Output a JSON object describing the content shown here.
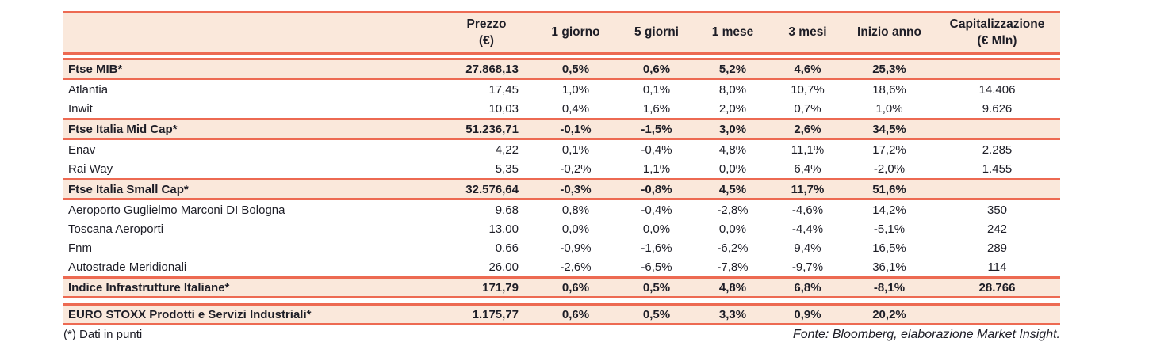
{
  "colors": {
    "accent_line": "#ED6A52",
    "highlight_row_bg": "#FAE8DB",
    "text": "#1D1D26"
  },
  "table": {
    "header": {
      "name": "",
      "cols": [
        "Prezzo\n(€)",
        "1 giorno",
        "5 giorni",
        "1 mese",
        "3 mesi",
        "Inizio anno",
        "Capitalizzazione\n(€ Mln)"
      ]
    },
    "rows": [
      {
        "type": "index",
        "gap_before": true,
        "name": "Ftse MIB*",
        "prezzo": "27.868,13",
        "d1": "0,5%",
        "d5": "0,6%",
        "m1": "5,2%",
        "m3": "4,6%",
        "ytd": "25,3%",
        "cap": ""
      },
      {
        "type": "stock",
        "name": "Atlantia",
        "prezzo": "17,45",
        "d1": "1,0%",
        "d5": "0,1%",
        "m1": "8,0%",
        "m3": "10,7%",
        "ytd": "18,6%",
        "cap": "14.406"
      },
      {
        "type": "stock",
        "name": "Inwit",
        "prezzo": "10,03",
        "d1": "0,4%",
        "d5": "1,6%",
        "m1": "2,0%",
        "m3": "0,7%",
        "ytd": "1,0%",
        "cap": "9.626"
      },
      {
        "type": "index",
        "name": "Ftse Italia Mid Cap*",
        "prezzo": "51.236,71",
        "d1": "-0,1%",
        "d5": "-1,5%",
        "m1": "3,0%",
        "m3": "2,6%",
        "ytd": "34,5%",
        "cap": ""
      },
      {
        "type": "stock",
        "name": "Enav",
        "prezzo": "4,22",
        "d1": "0,1%",
        "d5": "-0,4%",
        "m1": "4,8%",
        "m3": "11,1%",
        "ytd": "17,2%",
        "cap": "2.285"
      },
      {
        "type": "stock",
        "name": "Rai Way",
        "prezzo": "5,35",
        "d1": "-0,2%",
        "d5": "1,1%",
        "m1": "0,0%",
        "m3": "6,4%",
        "ytd": "-2,0%",
        "cap": "1.455"
      },
      {
        "type": "index",
        "name": "Ftse Italia Small Cap*",
        "prezzo": "32.576,64",
        "d1": "-0,3%",
        "d5": "-0,8%",
        "m1": "4,5%",
        "m3": "11,7%",
        "ytd": "51,6%",
        "cap": ""
      },
      {
        "type": "stock",
        "name": "Aeroporto Guglielmo Marconi DI Bologna",
        "prezzo": "9,68",
        "d1": "0,8%",
        "d5": "-0,4%",
        "m1": "-2,8%",
        "m3": "-4,6%",
        "ytd": "14,2%",
        "cap": "350"
      },
      {
        "type": "stock",
        "name": "Toscana Aeroporti",
        "prezzo": "13,00",
        "d1": "0,0%",
        "d5": "0,0%",
        "m1": "0,0%",
        "m3": "-4,4%",
        "ytd": "-5,1%",
        "cap": "242"
      },
      {
        "type": "stock",
        "name": "Fnm",
        "prezzo": "0,66",
        "d1": "-0,9%",
        "d5": "-1,6%",
        "m1": "-6,2%",
        "m3": "9,4%",
        "ytd": "16,5%",
        "cap": "289"
      },
      {
        "type": "stock",
        "name": "Autostrade Meridionali",
        "prezzo": "26,00",
        "d1": "-2,6%",
        "d5": "-6,5%",
        "m1": "-7,8%",
        "m3": "-9,7%",
        "ytd": "36,1%",
        "cap": "114"
      },
      {
        "type": "index",
        "name": "Indice Infrastrutture Italiane*",
        "prezzo": "171,79",
        "d1": "0,6%",
        "d5": "0,5%",
        "m1": "4,8%",
        "m3": "6,8%",
        "ytd": "-8,1%",
        "cap": "28.766"
      },
      {
        "type": "index",
        "gap_before": true,
        "big_gap": true,
        "name": "EURO STOXX Prodotti e Servizi Industriali*",
        "prezzo": "1.175,77",
        "d1": "0,6%",
        "d5": "0,5%",
        "m1": "3,3%",
        "m3": "0,9%",
        "ytd": "20,2%",
        "cap": ""
      }
    ]
  },
  "footer": {
    "note": "(*) Dati in punti",
    "source": "Fonte: Bloomberg, elaborazione Market Insight."
  }
}
